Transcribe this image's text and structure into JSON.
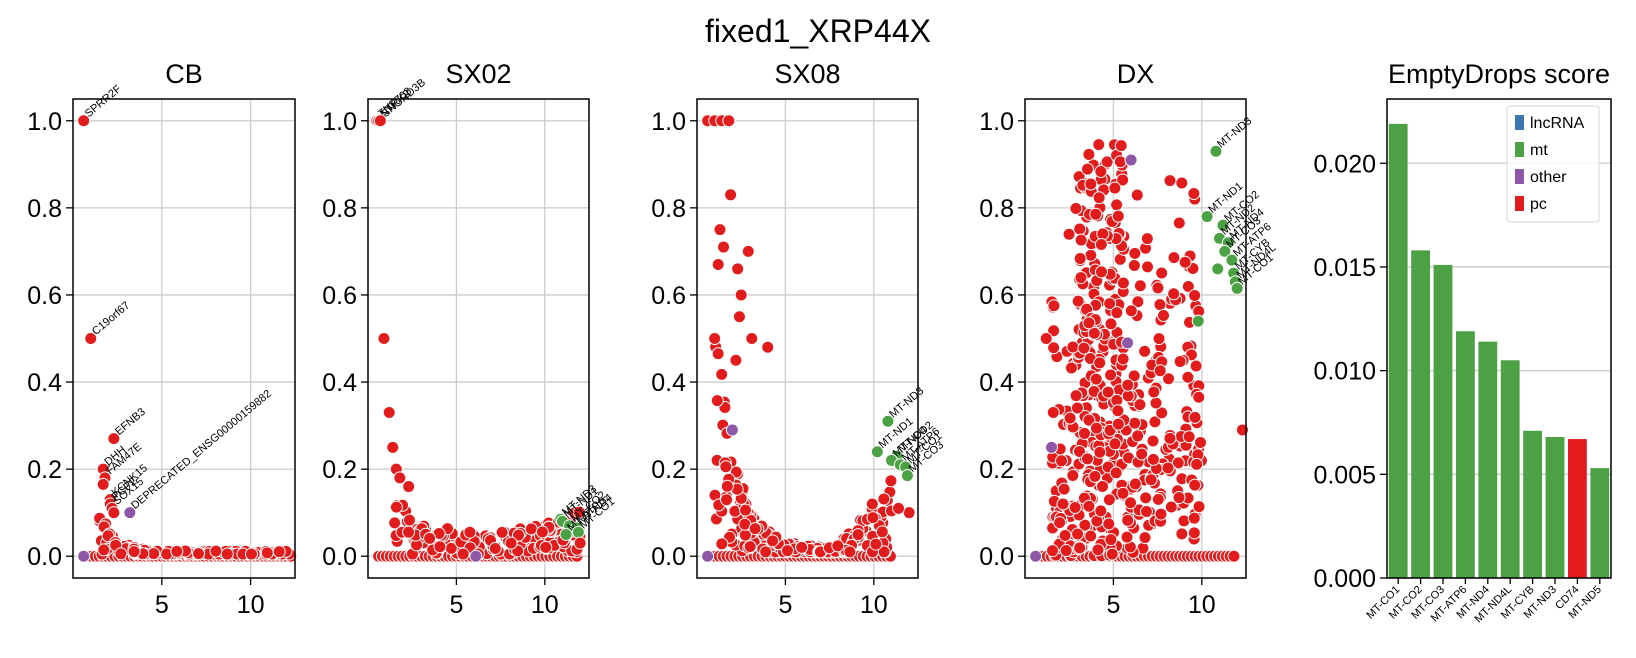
{
  "figure_title": "fixed1_XRP44X",
  "colors": {
    "lncRNA": "#3d76b0",
    "mt": "#4ca145",
    "other": "#8f57a8",
    "pc": "#e21c1c",
    "grid": "#cccccc"
  },
  "chart_data": [
    {
      "type": "scatter",
      "title": "CB",
      "xlim": [
        0,
        12.5
      ],
      "ylim": [
        -0.05,
        1.05
      ],
      "xticks": [
        5,
        10
      ],
      "yticks": [
        0.0,
        0.2,
        0.4,
        0.6,
        0.8,
        1.0
      ],
      "grid": true,
      "points": [
        {
          "x": 0.6,
          "y": 1.0,
          "cat": "pc",
          "label": "SPRR2F"
        },
        {
          "x": 1.0,
          "y": 0.5,
          "cat": "pc",
          "label": "C19orf67"
        },
        {
          "x": 2.3,
          "y": 0.27,
          "cat": "pc",
          "label": "EFNB3"
        },
        {
          "x": 1.7,
          "y": 0.2,
          "cat": "pc",
          "label": "DHH"
        },
        {
          "x": 1.8,
          "y": 0.18,
          "cat": "pc",
          "label": "FAM47E"
        },
        {
          "x": 1.7,
          "y": 0.165,
          "cat": "pc",
          "label": ""
        },
        {
          "x": 2.1,
          "y": 0.13,
          "cat": "pc",
          "label": "KCNK15"
        },
        {
          "x": 2.1,
          "y": 0.12,
          "cat": "pc",
          "label": "PCP2"
        },
        {
          "x": 2.2,
          "y": 0.11,
          "cat": "pc",
          "label": "SOX15"
        },
        {
          "x": 2.3,
          "y": 0.1,
          "cat": "pc",
          "label": ""
        },
        {
          "x": 3.2,
          "y": 0.1,
          "cat": "other",
          "label": "DEPRECATED_ENSG00000159882"
        },
        {
          "x": 0.6,
          "y": 0.0,
          "cat": "other",
          "label": ""
        }
      ],
      "curve": {
        "cat": "pc",
        "y_at_x_min": 0.1,
        "x_end": 12.3,
        "y_end": 0.012
      }
    },
    {
      "type": "scatter",
      "title": "SX02",
      "xlim": [
        0,
        12.5
      ],
      "ylim": [
        -0.05,
        1.05
      ],
      "xticks": [
        5,
        10
      ],
      "yticks": [
        0.0,
        0.2,
        0.4,
        0.6,
        0.8,
        1.0
      ],
      "grid": true,
      "points": [
        {
          "x": 0.5,
          "y": 1.0,
          "cat": "pc",
          "label": "ZNF703"
        },
        {
          "x": 0.6,
          "y": 1.0,
          "cat": "pc",
          "label": "NTRK2"
        },
        {
          "x": 0.7,
          "y": 1.0,
          "cat": "pc",
          "label": "SNORD3B"
        },
        {
          "x": 0.9,
          "y": 0.5,
          "cat": "pc",
          "label": ""
        },
        {
          "x": 1.2,
          "y": 0.33,
          "cat": "pc",
          "label": ""
        },
        {
          "x": 1.4,
          "y": 0.25,
          "cat": "pc",
          "label": ""
        },
        {
          "x": 1.6,
          "y": 0.2,
          "cat": "pc",
          "label": ""
        },
        {
          "x": 1.8,
          "y": 0.18,
          "cat": "pc",
          "label": ""
        },
        {
          "x": 2.3,
          "y": 0.16,
          "cat": "pc",
          "label": ""
        },
        {
          "x": 6.1,
          "y": 0.0,
          "cat": "other",
          "label": ""
        },
        {
          "x": 10.9,
          "y": 0.085,
          "cat": "mt",
          "label": "MT-ND3"
        },
        {
          "x": 11.0,
          "y": 0.08,
          "cat": "mt",
          "label": "MT-ND1"
        },
        {
          "x": 11.4,
          "y": 0.07,
          "cat": "mt",
          "label": "MT-CO2"
        },
        {
          "x": 11.8,
          "y": 0.065,
          "cat": "mt",
          "label": "MT-ND4"
        },
        {
          "x": 11.2,
          "y": 0.05,
          "cat": "mt",
          "label": "MT-ATP6"
        },
        {
          "x": 11.9,
          "y": 0.055,
          "cat": "mt",
          "label": "MT-CO1"
        },
        {
          "x": 12.0,
          "y": 0.03,
          "cat": "pc",
          "label": ""
        }
      ],
      "curve": {
        "cat": "pc",
        "y_at_x_min": 0.15,
        "x_end": 12.0,
        "y_end": 0.06
      }
    },
    {
      "type": "scatter",
      "title": "SX08",
      "xlim": [
        0,
        12.5
      ],
      "ylim": [
        -0.05,
        1.05
      ],
      "xticks": [
        5,
        10
      ],
      "yticks": [
        0.0,
        0.2,
        0.4,
        0.6,
        0.8,
        1.0
      ],
      "grid": true,
      "points": [
        {
          "x": 0.6,
          "y": 1.0,
          "cat": "pc",
          "label": ""
        },
        {
          "x": 1.0,
          "y": 1.0,
          "cat": "pc",
          "label": ""
        },
        {
          "x": 1.4,
          "y": 1.0,
          "cat": "pc",
          "label": ""
        },
        {
          "x": 1.8,
          "y": 1.0,
          "cat": "pc",
          "label": ""
        },
        {
          "x": 1.9,
          "y": 0.83,
          "cat": "pc",
          "label": ""
        },
        {
          "x": 1.3,
          "y": 0.75,
          "cat": "pc",
          "label": ""
        },
        {
          "x": 1.5,
          "y": 0.71,
          "cat": "pc",
          "label": ""
        },
        {
          "x": 2.9,
          "y": 0.7,
          "cat": "pc",
          "label": ""
        },
        {
          "x": 1.2,
          "y": 0.67,
          "cat": "pc",
          "label": ""
        },
        {
          "x": 2.3,
          "y": 0.66,
          "cat": "pc",
          "label": ""
        },
        {
          "x": 2.5,
          "y": 0.6,
          "cat": "pc",
          "label": ""
        },
        {
          "x": 2.4,
          "y": 0.55,
          "cat": "pc",
          "label": ""
        },
        {
          "x": 1.0,
          "y": 0.5,
          "cat": "pc",
          "label": ""
        },
        {
          "x": 3.1,
          "y": 0.5,
          "cat": "pc",
          "label": ""
        },
        {
          "x": 4.0,
          "y": 0.48,
          "cat": "pc",
          "label": ""
        },
        {
          "x": 2.2,
          "y": 0.45,
          "cat": "pc",
          "label": ""
        },
        {
          "x": 2.0,
          "y": 0.29,
          "cat": "other",
          "label": ""
        },
        {
          "x": 0.6,
          "y": 0.0,
          "cat": "other",
          "label": ""
        },
        {
          "x": 10.8,
          "y": 0.31,
          "cat": "mt",
          "label": "MT-ND3"
        },
        {
          "x": 10.2,
          "y": 0.24,
          "cat": "mt",
          "label": "MT-ND1"
        },
        {
          "x": 11.3,
          "y": 0.23,
          "cat": "mt",
          "label": "MT-CO2"
        },
        {
          "x": 11.0,
          "y": 0.22,
          "cat": "mt",
          "label": "MT-ND4"
        },
        {
          "x": 11.5,
          "y": 0.21,
          "cat": "mt",
          "label": "MT-ATP6"
        },
        {
          "x": 11.8,
          "y": 0.205,
          "cat": "mt",
          "label": "MT-CO1"
        },
        {
          "x": 11.9,
          "y": 0.185,
          "cat": "mt",
          "label": "MT-CO3"
        },
        {
          "x": 12.0,
          "y": 0.1,
          "cat": "pc",
          "label": ""
        },
        {
          "x": 11.4,
          "y": 0.11,
          "cat": "pc",
          "label": ""
        }
      ],
      "curve": {
        "cat": "pc",
        "y_at_x_min": 0.45,
        "x_end": 11.0,
        "y_end": 0.15
      }
    },
    {
      "type": "scatter",
      "title": "DX",
      "xlim": [
        0,
        12.5
      ],
      "ylim": [
        -0.05,
        1.05
      ],
      "xticks": [
        5,
        10
      ],
      "yticks": [
        0.0,
        0.2,
        0.4,
        0.6,
        0.8,
        1.0
      ],
      "grid": true,
      "points": [
        {
          "x": 10.8,
          "y": 0.93,
          "cat": "mt",
          "label": "MT-ND3"
        },
        {
          "x": 10.3,
          "y": 0.78,
          "cat": "mt",
          "label": "MT-ND1"
        },
        {
          "x": 11.2,
          "y": 0.76,
          "cat": "mt",
          "label": "MT-CO2"
        },
        {
          "x": 11.0,
          "y": 0.73,
          "cat": "mt",
          "label": "MT-ND2"
        },
        {
          "x": 11.5,
          "y": 0.72,
          "cat": "mt",
          "label": "MT-ND4"
        },
        {
          "x": 11.3,
          "y": 0.7,
          "cat": "mt",
          "label": "MT-CO3"
        },
        {
          "x": 11.7,
          "y": 0.68,
          "cat": "mt",
          "label": "MT-ATP6"
        },
        {
          "x": 11.8,
          "y": 0.65,
          "cat": "mt",
          "label": "MT-CYB"
        },
        {
          "x": 11.9,
          "y": 0.63,
          "cat": "mt",
          "label": "MT-ND4L"
        },
        {
          "x": 12.0,
          "y": 0.615,
          "cat": "mt",
          "label": "MT-CO1"
        },
        {
          "x": 10.9,
          "y": 0.66,
          "cat": "mt",
          "label": ""
        },
        {
          "x": 9.8,
          "y": 0.54,
          "cat": "mt",
          "label": ""
        },
        {
          "x": 6.0,
          "y": 0.91,
          "cat": "other",
          "label": ""
        },
        {
          "x": 5.8,
          "y": 0.49,
          "cat": "other",
          "label": ""
        },
        {
          "x": 1.5,
          "y": 0.25,
          "cat": "other",
          "label": ""
        },
        {
          "x": 0.6,
          "y": 0.0,
          "cat": "other",
          "label": ""
        },
        {
          "x": 1.2,
          "y": 0.5,
          "cat": "pc",
          "label": ""
        },
        {
          "x": 1.6,
          "y": 0.33,
          "cat": "pc",
          "label": ""
        },
        {
          "x": 12.3,
          "y": 0.29,
          "cat": "pc",
          "label": ""
        }
      ],
      "curve": {
        "cat": "pc",
        "y_at_x_min": 0.6,
        "x_end": 12.0,
        "y_end": 0.3
      }
    },
    {
      "type": "bar",
      "title": "EmptyDrops score",
      "categories": [
        "MT-CO1",
        "MT-CO2",
        "MT-CO3",
        "MT-ATP6",
        "MT-ND4",
        "MT-ND4L",
        "MT-CYB",
        "MT-ND3",
        "CD74",
        "MT-ND5"
      ],
      "values": [
        0.0219,
        0.0158,
        0.0151,
        0.0119,
        0.0114,
        0.0105,
        0.0071,
        0.0068,
        0.0067,
        0.0053
      ],
      "bar_cat": [
        "mt",
        "mt",
        "mt",
        "mt",
        "mt",
        "mt",
        "mt",
        "mt",
        "pc",
        "mt"
      ],
      "ylim": [
        0,
        0.0231
      ],
      "yticks": [
        "0.000",
        "0.005",
        "0.010",
        "0.015",
        "0.020"
      ],
      "ytick_values": [
        0.0,
        0.005,
        0.01,
        0.015,
        0.02
      ],
      "grid": true,
      "legend": {
        "placement": "top-right",
        "entries": [
          "lncRNA",
          "mt",
          "other",
          "pc"
        ]
      }
    }
  ]
}
